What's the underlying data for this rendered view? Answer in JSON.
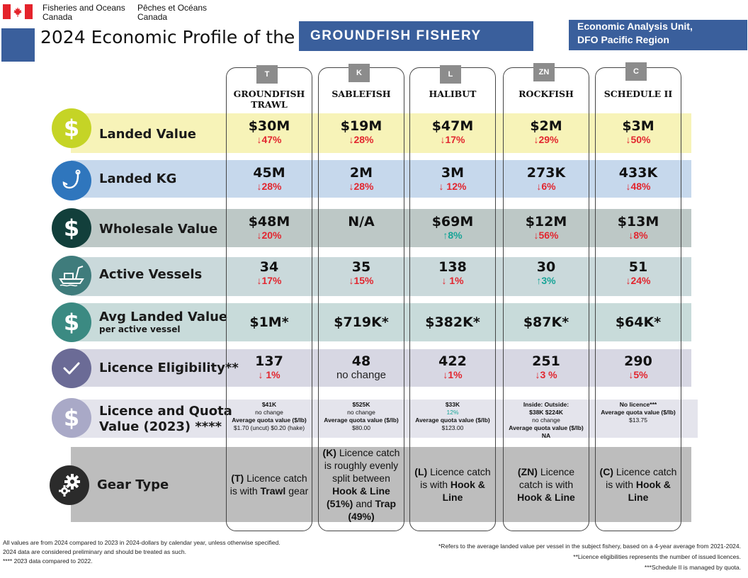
{
  "header": {
    "dept_en_line1": "Fisheries and Oceans",
    "dept_en_line2": "Canada",
    "dept_fr_line1": "Pêches et Océans",
    "dept_fr_line2": "Canada",
    "title": "2024 Economic Profile of the",
    "fishery": "GROUNDFISH FISHERY",
    "unit_line1": "Economic Analysis Unit,",
    "unit_line2": "DFO Pacific Region"
  },
  "colors": {
    "brand_blue": "#3a5f9c",
    "flag_red": "#e4232b",
    "decrease": "#e2262f",
    "increase": "#17a497"
  },
  "columns": [
    {
      "tab": "T",
      "name_line1": "GROUNDFISH",
      "name_line2": "TRAWL"
    },
    {
      "tab": "K",
      "name_line1": "SABLEFISH",
      "name_line2": ""
    },
    {
      "tab": "L",
      "name_line1": "HALIBUT",
      "name_line2": ""
    },
    {
      "tab": "ZN",
      "name_line1": "ROCKFISH",
      "name_line2": ""
    },
    {
      "tab": "C",
      "name_line1": "SCHEDULE II",
      "name_line2": ""
    }
  ],
  "rows": {
    "landed_value": {
      "label": "Landed Value",
      "icon": "dollar-icon",
      "cells": [
        {
          "value": "$30M",
          "change": "↓47%",
          "dir": "down"
        },
        {
          "value": "$19M",
          "change": "↓28%",
          "dir": "down"
        },
        {
          "value": "$47M",
          "change": "↓17%",
          "dir": "down"
        },
        {
          "value": "$2M",
          "change": "↓29%",
          "dir": "down"
        },
        {
          "value": "$3M",
          "change": "↓50%",
          "dir": "down"
        }
      ]
    },
    "landed_kg": {
      "label": "Landed KG",
      "icon": "fishing-hook-icon",
      "cells": [
        {
          "value": "45M",
          "change": "↓28%",
          "dir": "down"
        },
        {
          "value": "2M",
          "change": "↓28%",
          "dir": "down"
        },
        {
          "value": "3M",
          "change": "↓ 12%",
          "dir": "down"
        },
        {
          "value": "273K",
          "change": "↓6%",
          "dir": "down"
        },
        {
          "value": "433K",
          "change": "↓48%",
          "dir": "down"
        }
      ]
    },
    "wholesale_value": {
      "label": "Wholesale Value",
      "icon": "dollar-icon",
      "cells": [
        {
          "value": "$48M",
          "change": "↓20%",
          "dir": "down"
        },
        {
          "value": "N/A",
          "change": "",
          "dir": "none"
        },
        {
          "value": "$69M",
          "change": "↑8%",
          "dir": "up"
        },
        {
          "value": "$12M",
          "change": "↓56%",
          "dir": "down"
        },
        {
          "value": "$13M",
          "change": "↓8%",
          "dir": "down"
        }
      ]
    },
    "active_vessels": {
      "label": "Active Vessels",
      "icon": "fishing-boat-icon",
      "cells": [
        {
          "value": "34",
          "change": "↓17%",
          "dir": "down"
        },
        {
          "value": "35",
          "change": "↓15%",
          "dir": "down"
        },
        {
          "value": "138",
          "change": "↓ 1%",
          "dir": "down"
        },
        {
          "value": "30",
          "change": "↑3%",
          "dir": "up"
        },
        {
          "value": "51",
          "change": "↓24%",
          "dir": "down"
        }
      ]
    },
    "avg_landed_value": {
      "label": "Avg Landed Value",
      "sublabel": "per active vessel",
      "icon": "dollar-icon",
      "cells": [
        {
          "value": "$1M*"
        },
        {
          "value": "$719K*"
        },
        {
          "value": "$382K*"
        },
        {
          "value": "$87K*"
        },
        {
          "value": "$64K*"
        }
      ]
    },
    "licence_eligibility": {
      "label": "Licence Eligibility**",
      "icon": "checkmark-icon",
      "cells": [
        {
          "value": "137",
          "change": "↓ 1%",
          "dir": "down"
        },
        {
          "value": "48",
          "change": "no change",
          "dir": "none"
        },
        {
          "value": "422",
          "change": "↓1%",
          "dir": "down"
        },
        {
          "value": "251",
          "change": "↓3 %",
          "dir": "down"
        },
        {
          "value": "290",
          "change": "↓5%",
          "dir": "down"
        }
      ]
    },
    "licence_quota_value": {
      "label_line1": "Licence and Quota",
      "label_line2": "Value (2023) ****",
      "icon": "dollar-icon",
      "quota_label": "Average quota value ($/lb)",
      "cells": [
        {
          "top": "$41K",
          "change": "no change",
          "quota": "$1.70 (uncut) $0.20 (hake)"
        },
        {
          "top": "$525K",
          "change": "no change",
          "quota": "$80.00"
        },
        {
          "top": "$33K",
          "change": "12%",
          "quota": "$123.00"
        },
        {
          "top": "Inside:  Outside:",
          "top2": "$38K   $224K",
          "change": "no change",
          "quota": "NA"
        },
        {
          "top": "No licence***",
          "quota_label": "Average quota value ($/lb)",
          "quota": "$13.75"
        }
      ]
    },
    "gear_type": {
      "label": "Gear Type",
      "icon": "gears-icon",
      "cells": [
        {
          "code": "(T)",
          "text": "Licence catch is with",
          "gear1": "Trawl",
          "tail": "gear"
        },
        {
          "code": "(K)",
          "text": "Licence catch is roughly evenly split between",
          "gear1": "Hook & Line (51%)",
          "mid": "and",
          "gear2": "Trap (49%)"
        },
        {
          "code": "(L)",
          "text": "Licence catch is with",
          "gear1": "Hook & Line"
        },
        {
          "code": "(ZN)",
          "text": "Licence catch is with",
          "gear1": "Hook & Line"
        },
        {
          "code": "(C)",
          "text": "Licence catch is with",
          "gear1": "Hook & Line"
        }
      ]
    }
  },
  "footer": {
    "left_line1": "All values are from 2024 compared to 2023 in 2024-dollars by calendar year, unless otherwise specified.",
    "left_line2": "2024 data are considered preliminary and should be treated as such.",
    "left_line3": "**** 2023 data compared to 2022.",
    "right_line1": "*Refers to the average landed value per vessel in the subject fishery, based on a 4-year average from 2021-2024.",
    "right_line2": "**Licence eligibilities represents the number of issued licences.",
    "right_line3": "***Schedule II is managed by quota."
  }
}
